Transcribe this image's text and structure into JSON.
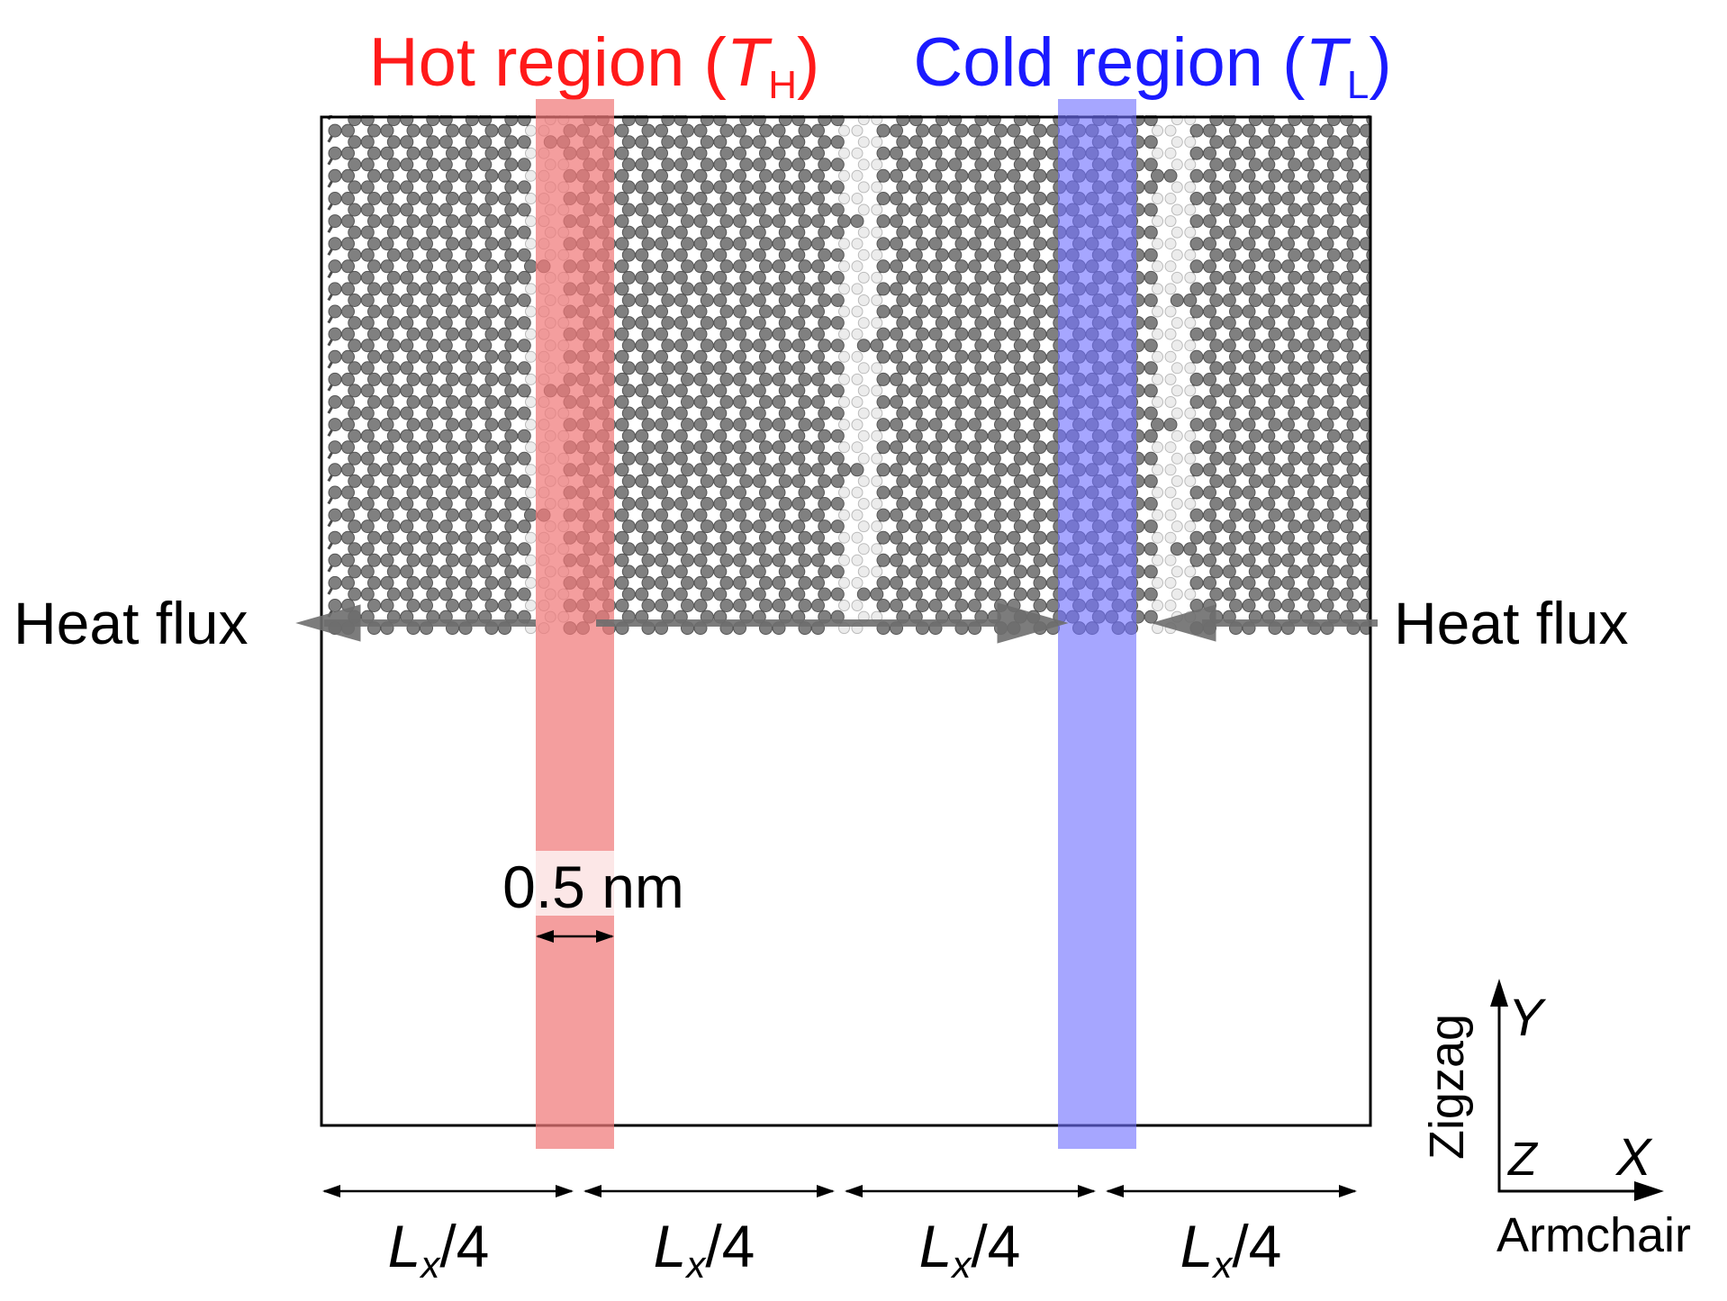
{
  "title_hot": {
    "prefix": "Hot region (",
    "symbol": "T",
    "subscript": "H",
    "suffix": ")",
    "color": "#ff1a1a"
  },
  "title_cold": {
    "prefix": "Cold region (",
    "symbol": "T",
    "subscript": "L",
    "suffix": ")",
    "color": "#1a1aff"
  },
  "heat_flux_left": "Heat flux",
  "heat_flux_right": "Heat flux",
  "width_label": "0.5 nm",
  "segments": [
    {
      "symbol": "L",
      "subscript": "x",
      "rest": "/4"
    },
    {
      "symbol": "L",
      "subscript": "x",
      "rest": "/4"
    },
    {
      "symbol": "L",
      "subscript": "x",
      "rest": "/4"
    },
    {
      "symbol": "L",
      "subscript": "x",
      "rest": "/4"
    }
  ],
  "axes": {
    "y_label": "Y",
    "z_label": "Z",
    "x_label": "X",
    "y_direction": "Zigzag",
    "x_direction": "Armchair"
  },
  "colors": {
    "hot_band": "#f07878",
    "cold_band": "#7070ff",
    "carbon": "#808080",
    "hydrogen": "#ececec",
    "bond": "#4a4a4a",
    "arrow": "#6e6e6e"
  }
}
